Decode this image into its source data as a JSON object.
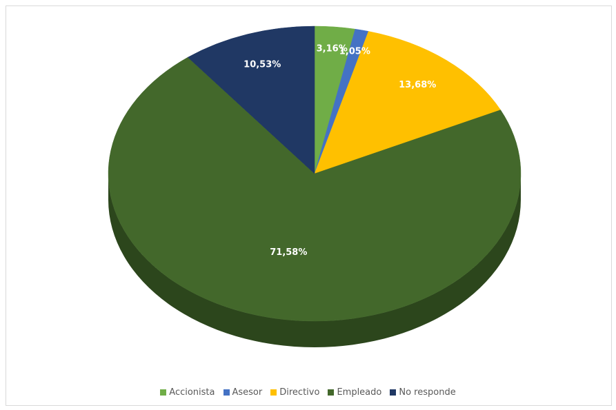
{
  "chart_data": {
    "type": "pie",
    "style": "3d",
    "title": "",
    "categories": [
      "Accionista",
      "Asesor",
      "Directivo",
      "Empleado",
      "No responde"
    ],
    "values": [
      3.16,
      1.05,
      13.68,
      71.58,
      10.53
    ],
    "labels": [
      "3,16%",
      "1,05%",
      "13,68%",
      "71,58%",
      "10,53%"
    ],
    "colors": [
      "#70ad47",
      "#4472c4",
      "#ffc000",
      "#43682b",
      "#203864"
    ],
    "side_colors": [
      "#4f7a32",
      "#30508a",
      "#b38600",
      "#2c461c",
      "#151f3c"
    ],
    "legend_position": "bottom",
    "start_angle_deg": 0,
    "direction": "clockwise"
  }
}
